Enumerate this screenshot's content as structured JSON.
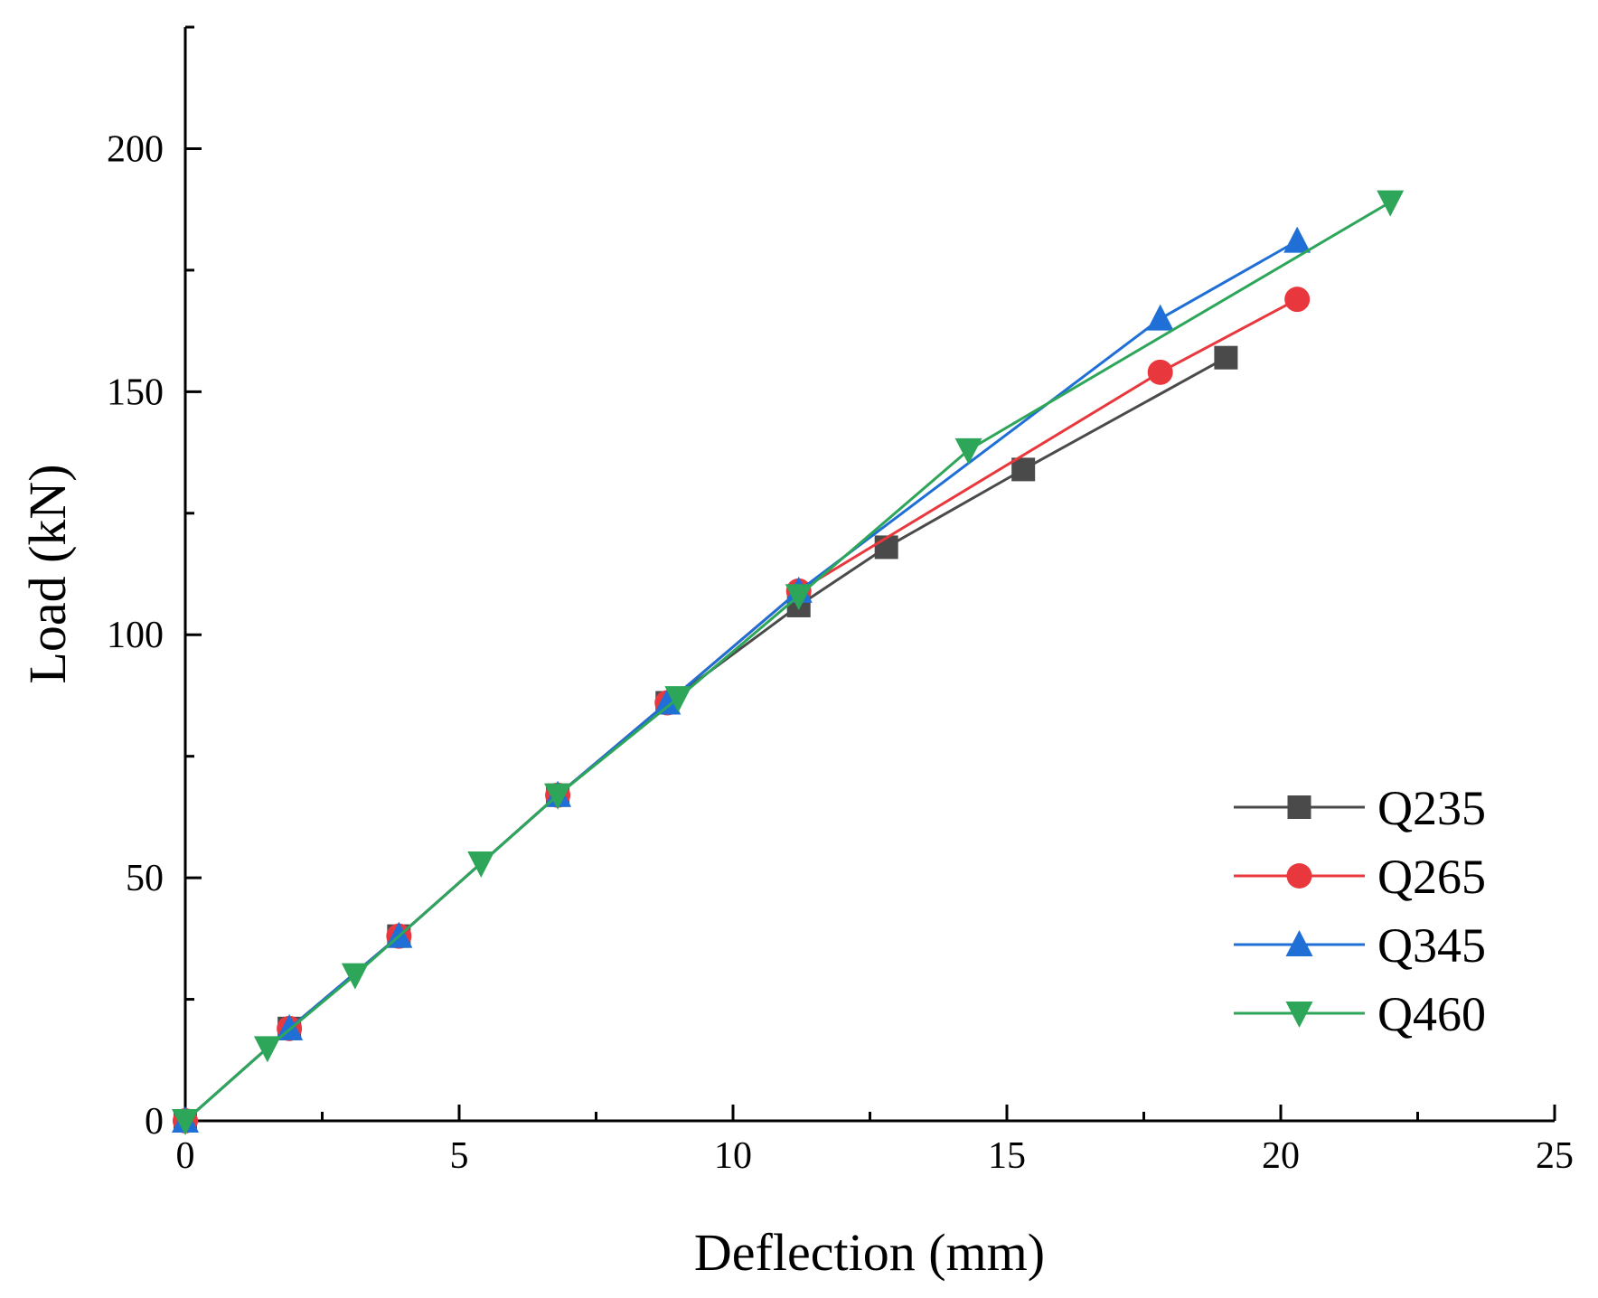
{
  "chart_data": {
    "type": "line",
    "title": "",
    "xlabel": "Deflection (mm)",
    "ylabel": "Load (kN)",
    "xlim": [
      0,
      25
    ],
    "ylim": [
      0,
      225
    ],
    "xticks": [
      0,
      5,
      10,
      15,
      20,
      25
    ],
    "yticks": [
      0,
      50,
      100,
      150,
      200
    ],
    "grid": false,
    "legend_position": "bottom-right",
    "series": [
      {
        "name": "Q235",
        "color": "#4a4a4a",
        "marker": "square",
        "x": [
          0,
          1.9,
          3.9,
          6.8,
          8.8,
          11.2,
          12.8,
          15.3,
          19.0
        ],
        "y": [
          0,
          19,
          38,
          67,
          86,
          106,
          118,
          134,
          157
        ]
      },
      {
        "name": "Q265",
        "color": "#e8383d",
        "marker": "circle",
        "x": [
          0,
          1.9,
          3.9,
          6.8,
          8.8,
          11.2,
          17.8,
          20.3
        ],
        "y": [
          0,
          19,
          38,
          67,
          86,
          109,
          154,
          169
        ]
      },
      {
        "name": "Q345",
        "color": "#1f6fd6",
        "marker": "triangle-up",
        "x": [
          0,
          1.9,
          3.9,
          6.8,
          8.8,
          11.2,
          17.8,
          20.3
        ],
        "y": [
          0,
          19,
          38,
          67,
          86,
          109,
          165,
          181
        ]
      },
      {
        "name": "Q460",
        "color": "#2ea65a",
        "marker": "triangle-down",
        "x": [
          0,
          1.5,
          3.1,
          5.4,
          6.8,
          9.0,
          11.2,
          14.3,
          22.0
        ],
        "y": [
          0,
          15,
          30,
          53,
          67,
          87,
          108,
          138,
          189
        ]
      }
    ]
  }
}
